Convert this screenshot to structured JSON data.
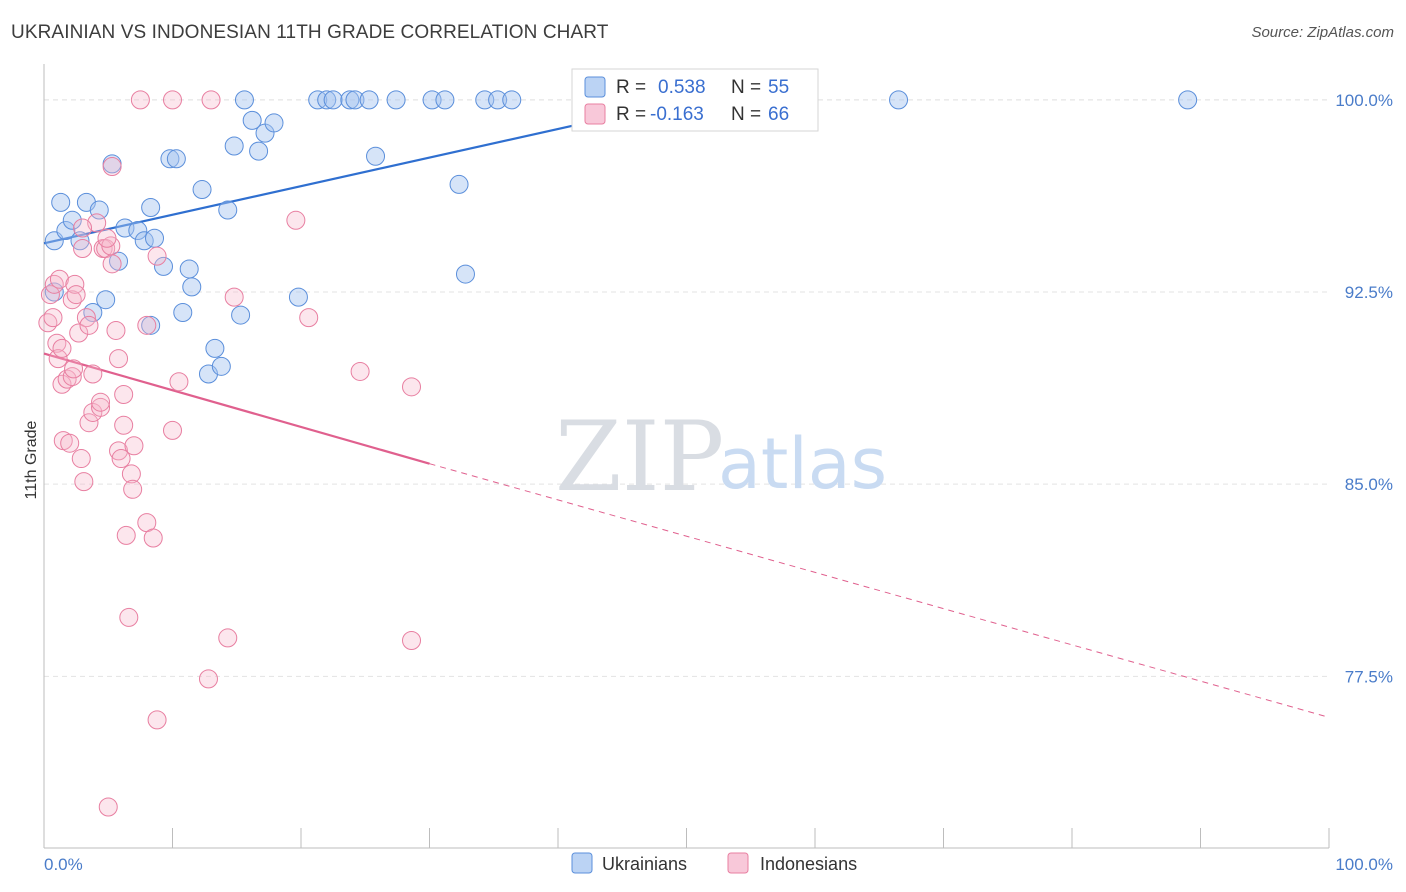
{
  "header": {
    "title": "UKRAINIAN VS INDONESIAN 11TH GRADE CORRELATION CHART",
    "source": "Source: ZipAtlas.com"
  },
  "watermark": {
    "zip": "ZIP",
    "atlas": "atlas"
  },
  "colors": {
    "blue": "#5b8fdb",
    "blue_fill": "rgba(164,196,240,0.45)",
    "blue_line": "#2f6fd0",
    "pink": "#e87fa1",
    "pink_fill": "rgba(246,182,204,0.35)",
    "pink_line": "#e0608e",
    "grid": "#e3e3e3",
    "tick_text": "#4a7cc9"
  },
  "legend": {
    "rows": [
      {
        "r_label": "R = ",
        "r_value": "0.538",
        "n_label": "N = ",
        "n_value": "55",
        "series": "blue"
      },
      {
        "r_label": "R = ",
        "r_value": "-0.163",
        "n_label": "N = ",
        "n_value": "66",
        "series": "pink"
      }
    ]
  },
  "bottom_legend": [
    "Ukrainians",
    "Indonesians"
  ],
  "chart_data": {
    "type": "scatter",
    "title": "UKRAINIAN VS INDONESIAN 11TH GRADE CORRELATION CHART",
    "xlabel": "",
    "ylabel": "11th Grade",
    "xlim": [
      0,
      100
    ],
    "ylim": [
      70.8,
      101.4
    ],
    "x_tick_labels": [
      "0.0%",
      "100.0%"
    ],
    "y_ticks": [
      77.5,
      85.0,
      92.5,
      100.0
    ],
    "y_tick_labels": [
      "77.5%",
      "85.0%",
      "92.5%",
      "100.0%"
    ],
    "grid": true,
    "legend_position": "top-center",
    "series": [
      {
        "name": "Ukrainians",
        "color": "blue",
        "R": 0.538,
        "N": 55,
        "trend": {
          "x": [
            0,
            47.5
          ],
          "y": [
            94.4,
            99.7
          ],
          "dashed_to": null
        },
        "points": [
          [
            0.8,
            94.5
          ],
          [
            0.8,
            92.5
          ],
          [
            1.3,
            96.0
          ],
          [
            1.7,
            94.9
          ],
          [
            2.2,
            95.3
          ],
          [
            2.8,
            94.5
          ],
          [
            3.3,
            96.0
          ],
          [
            3.8,
            91.7
          ],
          [
            4.3,
            95.7
          ],
          [
            4.8,
            92.2
          ],
          [
            5.3,
            97.5
          ],
          [
            5.8,
            93.7
          ],
          [
            6.3,
            95.0
          ],
          [
            7.3,
            94.9
          ],
          [
            7.8,
            94.5
          ],
          [
            8.3,
            91.2
          ],
          [
            8.3,
            95.8
          ],
          [
            8.6,
            94.6
          ],
          [
            9.3,
            93.5
          ],
          [
            9.8,
            97.7
          ],
          [
            10.3,
            97.7
          ],
          [
            10.8,
            91.7
          ],
          [
            11.3,
            93.4
          ],
          [
            11.5,
            92.7
          ],
          [
            12.3,
            96.5
          ],
          [
            12.8,
            89.3
          ],
          [
            13.3,
            90.3
          ],
          [
            13.8,
            89.6
          ],
          [
            14.3,
            95.7
          ],
          [
            14.8,
            98.2
          ],
          [
            15.3,
            91.6
          ],
          [
            15.6,
            100.0
          ],
          [
            16.2,
            99.2
          ],
          [
            16.7,
            98.0
          ],
          [
            17.2,
            98.7
          ],
          [
            17.9,
            99.1
          ],
          [
            19.8,
            92.3
          ],
          [
            21.3,
            100.0
          ],
          [
            22.0,
            100.0
          ],
          [
            22.5,
            100.0
          ],
          [
            23.8,
            100.0
          ],
          [
            24.2,
            100.0
          ],
          [
            25.3,
            100.0
          ],
          [
            25.8,
            97.8
          ],
          [
            27.4,
            100.0
          ],
          [
            30.2,
            100.0
          ],
          [
            31.2,
            100.0
          ],
          [
            32.3,
            96.7
          ],
          [
            32.8,
            93.2
          ],
          [
            34.3,
            100.0
          ],
          [
            35.3,
            100.0
          ],
          [
            36.4,
            100.0
          ],
          [
            47.5,
            100.0
          ],
          [
            66.5,
            100.0
          ],
          [
            89.0,
            100.0
          ]
        ]
      },
      {
        "name": "Indonesians",
        "color": "pink",
        "R": -0.163,
        "N": 66,
        "trend": {
          "x": [
            0,
            30
          ],
          "y": [
            90.1,
            85.8
          ],
          "dashed_to": [
            100,
            75.9
          ]
        },
        "points": [
          [
            0.3,
            91.3
          ],
          [
            0.5,
            92.4
          ],
          [
            0.7,
            91.5
          ],
          [
            0.8,
            92.8
          ],
          [
            1.0,
            90.5
          ],
          [
            1.1,
            89.9
          ],
          [
            1.2,
            93.0
          ],
          [
            1.4,
            90.3
          ],
          [
            1.4,
            88.9
          ],
          [
            1.5,
            86.7
          ],
          [
            1.8,
            89.1
          ],
          [
            2.0,
            86.6
          ],
          [
            2.2,
            92.2
          ],
          [
            2.2,
            89.2
          ],
          [
            2.3,
            89.5
          ],
          [
            2.4,
            92.8
          ],
          [
            2.5,
            92.4
          ],
          [
            2.7,
            90.9
          ],
          [
            2.9,
            86.0
          ],
          [
            3.0,
            94.2
          ],
          [
            3.1,
            85.1
          ],
          [
            3.3,
            91.5
          ],
          [
            3.5,
            91.2
          ],
          [
            3.5,
            87.4
          ],
          [
            3.8,
            89.3
          ],
          [
            3.8,
            87.8
          ],
          [
            4.1,
            95.2
          ],
          [
            4.4,
            88.0
          ],
          [
            4.4,
            88.2
          ],
          [
            4.6,
            94.2
          ],
          [
            4.8,
            94.2
          ],
          [
            5.0,
            72.4
          ],
          [
            5.2,
            94.3
          ],
          [
            5.3,
            97.4
          ],
          [
            5.3,
            93.6
          ],
          [
            5.6,
            91.0
          ],
          [
            5.8,
            89.9
          ],
          [
            5.8,
            86.3
          ],
          [
            6.0,
            86.0
          ],
          [
            6.2,
            88.5
          ],
          [
            6.2,
            87.3
          ],
          [
            6.4,
            83.0
          ],
          [
            6.6,
            79.8
          ],
          [
            6.8,
            85.4
          ],
          [
            6.9,
            84.8
          ],
          [
            7.0,
            86.5
          ],
          [
            7.5,
            100.0
          ],
          [
            8.0,
            91.2
          ],
          [
            8.0,
            83.5
          ],
          [
            8.5,
            82.9
          ],
          [
            8.8,
            75.8
          ],
          [
            8.8,
            93.9
          ],
          [
            10.0,
            87.1
          ],
          [
            10.0,
            100.0
          ],
          [
            10.5,
            89.0
          ],
          [
            12.8,
            77.4
          ],
          [
            13.0,
            100.0
          ],
          [
            14.3,
            79.0
          ],
          [
            14.8,
            92.3
          ],
          [
            19.6,
            95.3
          ],
          [
            20.6,
            91.5
          ],
          [
            24.6,
            89.4
          ],
          [
            28.6,
            78.9
          ],
          [
            28.6,
            88.8
          ],
          [
            4.9,
            94.6
          ],
          [
            3.0,
            95.0
          ]
        ]
      }
    ]
  }
}
